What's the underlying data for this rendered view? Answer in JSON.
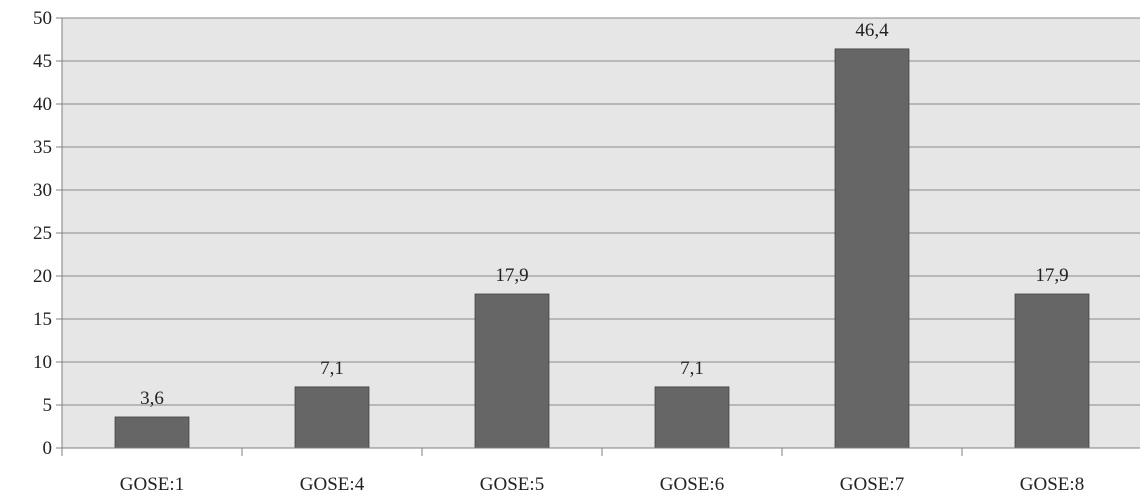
{
  "chart_data": {
    "type": "bar",
    "categories": [
      "GOSE:1",
      "GOSE:4",
      "GOSE:5",
      "GOSE:6",
      "GOSE:7",
      "GOSE:8"
    ],
    "values": [
      3.6,
      7.1,
      17.9,
      7.1,
      46.4,
      17.9
    ],
    "data_labels": [
      "3,6",
      "7,1",
      "17,9",
      "7,1",
      "46,4",
      "17,9"
    ],
    "yticks": [
      "0",
      "5",
      "10",
      "15",
      "20",
      "25",
      "30",
      "35",
      "40",
      "45",
      "50"
    ],
    "ylim": [
      0,
      50
    ],
    "grid": true,
    "legend": "none",
    "colors": {
      "bar": "#666666",
      "bar_border": "#4d4d4d",
      "plot_background": "#e6e6e6",
      "gridline": "#8a8a8a"
    }
  }
}
